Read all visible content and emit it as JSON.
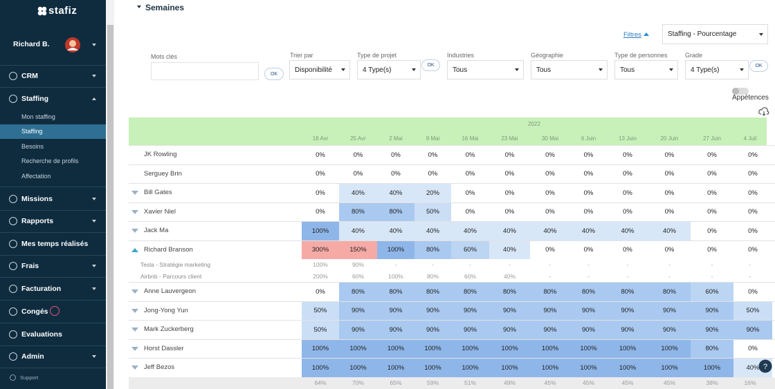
{
  "sidebar": {
    "logo": "stafiz",
    "user": "Richard B.",
    "menu": [
      {
        "label": "CRM",
        "caret": "down"
      },
      {
        "label": "Staffing",
        "caret": "up",
        "children": [
          "Mon staffing",
          "Staffing",
          "Besoins",
          "Recherche de profils",
          "Affectation"
        ],
        "active_child": 1
      },
      {
        "label": "Missions",
        "caret": "down"
      },
      {
        "label": "Rapports",
        "caret": "down"
      },
      {
        "label": "Mes temps réalisés"
      },
      {
        "label": "Frais",
        "caret": "down"
      },
      {
        "label": "Facturation",
        "caret": "down"
      },
      {
        "label": "Congés",
        "info": true
      },
      {
        "label": "Evaluations"
      },
      {
        "label": "Admin",
        "caret": "down"
      }
    ],
    "support": "Support"
  },
  "header": {
    "section": "Semaines",
    "filters_link": "Filtres",
    "view_select": "Staffing - Pourcentage"
  },
  "filters": [
    {
      "label": "Mots clés",
      "button": "OK"
    },
    {
      "label": "Trier par",
      "value": "Disponibilité"
    },
    {
      "label": "Type de projet",
      "value": "4 Type(s)",
      "button": "OK"
    },
    {
      "label": "Industries",
      "value": "Tous"
    },
    {
      "label": "Géographie",
      "value": "Tous"
    },
    {
      "label": "Type de personnes",
      "value": "Tous"
    },
    {
      "label": "Grade",
      "value": "4 Type(s)",
      "button": "OK"
    }
  ],
  "toggle": "Appétences",
  "table": {
    "year": "2022",
    "weeks": [
      "18 Avr",
      "25 Avr",
      "2 Mai",
      "9 Mai",
      "16 Mai",
      "23 Mai",
      "30 Mai",
      "6 Juin",
      "13 Juin",
      "20 Juin",
      "27 Juin",
      "4 Juil"
    ],
    "rows": [
      {
        "name": "JK Rowling",
        "cells": [
          "0%",
          "0%",
          "0%",
          "0%",
          "0%",
          "0%",
          "0%",
          "0%",
          "0%",
          "0%",
          "0%",
          "0%"
        ]
      },
      {
        "name": "Serguey Brin",
        "cells": [
          "0%",
          "0%",
          "0%",
          "0%",
          "0%",
          "0%",
          "0%",
          "0%",
          "0%",
          "0%",
          "0%",
          "0%"
        ]
      },
      {
        "name": "Bill Gates",
        "toggle": "collapsed",
        "cells": [
          "0%",
          "40%",
          "40%",
          "20%",
          "0%",
          "0%",
          "0%",
          "0%",
          "0%",
          "0%",
          "0%",
          "0%"
        ]
      },
      {
        "name": "Xavier Niel",
        "toggle": "collapsed",
        "cells": [
          "0%",
          "80%",
          "80%",
          "50%",
          "0%",
          "0%",
          "0%",
          "0%",
          "0%",
          "0%",
          "0%",
          "0%"
        ]
      },
      {
        "name": "Jack Ma",
        "toggle": "collapsed",
        "cells": [
          "100%",
          "40%",
          "40%",
          "40%",
          "40%",
          "40%",
          "40%",
          "40%",
          "40%",
          "40%",
          "0%",
          "0%"
        ]
      },
      {
        "name": "Richard Branson",
        "toggle": "expanded",
        "cells": [
          "300%",
          "150%",
          "100%",
          "80%",
          "60%",
          "40%",
          "0%",
          "0%",
          "0%",
          "0%",
          "0%",
          "0%"
        ],
        "assignments": [
          {
            "name": "Tesla - Stratégie marketing",
            "cells": [
              "100%",
              "90%",
              "-",
              "-",
              "-",
              "-",
              "-",
              "-",
              "-",
              "-",
              "-",
              "-"
            ]
          },
          {
            "name": "Airbnb - Parcours client",
            "cells": [
              "200%",
              "60%",
              "100%",
              "80%",
              "60%",
              "40%",
              "-",
              "-",
              "-",
              "-",
              "-",
              "-"
            ]
          }
        ]
      },
      {
        "name": "Anne Lauvergeon",
        "toggle": "collapsed",
        "cells": [
          "0%",
          "80%",
          "80%",
          "80%",
          "80%",
          "80%",
          "80%",
          "80%",
          "80%",
          "80%",
          "60%",
          "0%"
        ]
      },
      {
        "name": "Jong-Yong Yun",
        "toggle": "collapsed",
        "cells": [
          "50%",
          "90%",
          "90%",
          "90%",
          "90%",
          "90%",
          "90%",
          "90%",
          "90%",
          "90%",
          "90%",
          "50%"
        ]
      },
      {
        "name": "Mark Zuckerberg",
        "toggle": "collapsed",
        "cells": [
          "50%",
          "90%",
          "90%",
          "90%",
          "90%",
          "90%",
          "90%",
          "90%",
          "90%",
          "90%",
          "90%",
          "90%"
        ]
      },
      {
        "name": "Horst Dassler",
        "toggle": "collapsed",
        "cells": [
          "100%",
          "100%",
          "100%",
          "100%",
          "100%",
          "100%",
          "100%",
          "100%",
          "100%",
          "100%",
          "80%",
          "0%"
        ]
      },
      {
        "name": "Jeff Bezos",
        "toggle": "collapsed",
        "cells": [
          "100%",
          "100%",
          "100%",
          "100%",
          "100%",
          "100%",
          "100%",
          "100%",
          "100%",
          "100%",
          "100%",
          "40%"
        ]
      }
    ],
    "totals": [
      "64%",
      "70%",
      "65%",
      "59%",
      "51%",
      "49%",
      "45%",
      "45%",
      "45%",
      "45%",
      "38%",
      "16%"
    ]
  }
}
